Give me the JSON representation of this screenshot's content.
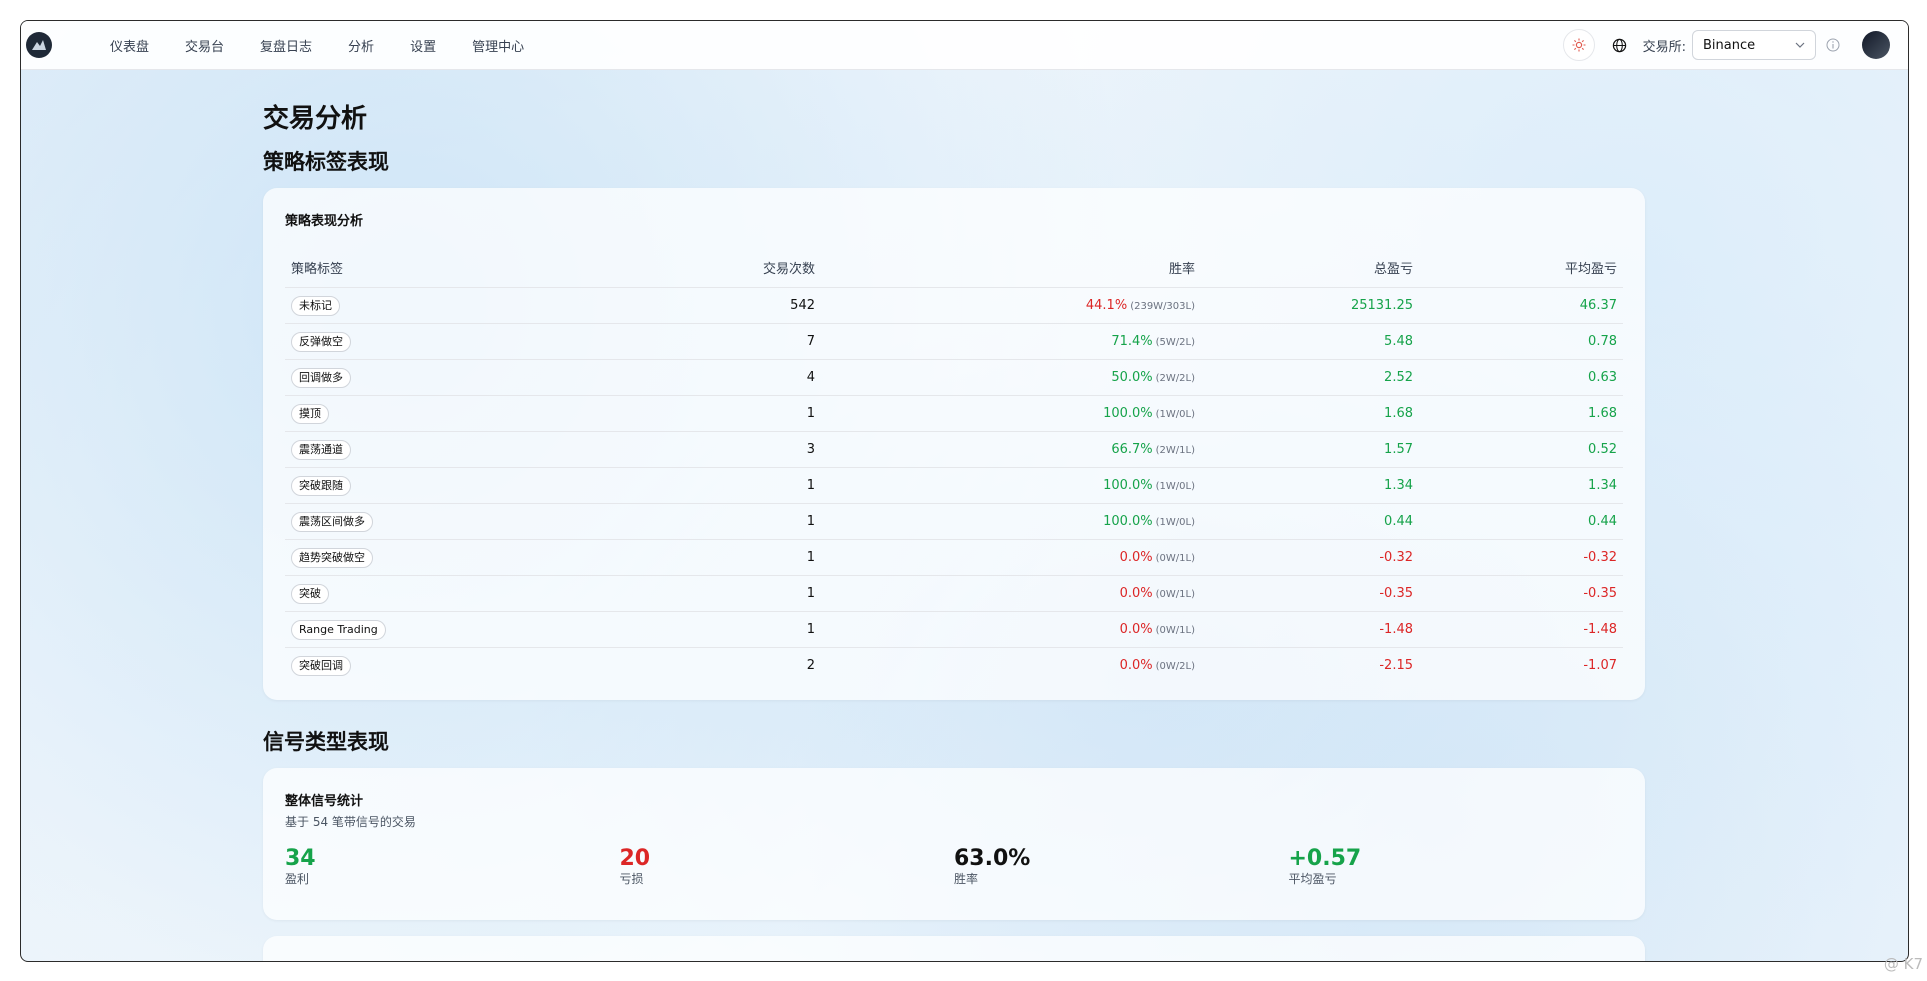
{
  "nav": {
    "items": [
      "仪表盘",
      "交易台",
      "复盘日志",
      "分析",
      "设置",
      "管理中心"
    ],
    "exchange_label": "交易所:",
    "exchange_value": "Binance"
  },
  "page": {
    "title": "交易分析",
    "strategy_section_title": "策略标签表现",
    "signal_section_title": "信号类型表现"
  },
  "strategy_card": {
    "title": "策略表现分析",
    "columns": [
      "策略标签",
      "交易次数",
      "胜率",
      "总盈亏",
      "平均盈亏"
    ],
    "rows": [
      {
        "tag": "未标记",
        "count": "542",
        "winrate": "44.1%",
        "wl": "(239W/303L)",
        "total": "25131.25",
        "avg": "46.37",
        "winrate_neg": true,
        "pnl_neg": false
      },
      {
        "tag": "反弹做空",
        "count": "7",
        "winrate": "71.4%",
        "wl": "(5W/2L)",
        "total": "5.48",
        "avg": "0.78",
        "winrate_neg": false,
        "pnl_neg": false
      },
      {
        "tag": "回调做多",
        "count": "4",
        "winrate": "50.0%",
        "wl": "(2W/2L)",
        "total": "2.52",
        "avg": "0.63",
        "winrate_neg": false,
        "pnl_neg": false
      },
      {
        "tag": "摸顶",
        "count": "1",
        "winrate": "100.0%",
        "wl": "(1W/0L)",
        "total": "1.68",
        "avg": "1.68",
        "winrate_neg": false,
        "pnl_neg": false
      },
      {
        "tag": "震荡通道",
        "count": "3",
        "winrate": "66.7%",
        "wl": "(2W/1L)",
        "total": "1.57",
        "avg": "0.52",
        "winrate_neg": false,
        "pnl_neg": false
      },
      {
        "tag": "突破跟随",
        "count": "1",
        "winrate": "100.0%",
        "wl": "(1W/0L)",
        "total": "1.34",
        "avg": "1.34",
        "winrate_neg": false,
        "pnl_neg": false
      },
      {
        "tag": "震荡区间做多",
        "count": "1",
        "winrate": "100.0%",
        "wl": "(1W/0L)",
        "total": "0.44",
        "avg": "0.44",
        "winrate_neg": false,
        "pnl_neg": false
      },
      {
        "tag": "趋势突破做空",
        "count": "1",
        "winrate": "0.0%",
        "wl": "(0W/1L)",
        "total": "-0.32",
        "avg": "-0.32",
        "winrate_neg": true,
        "pnl_neg": true
      },
      {
        "tag": "突破",
        "count": "1",
        "winrate": "0.0%",
        "wl": "(0W/1L)",
        "total": "-0.35",
        "avg": "-0.35",
        "winrate_neg": true,
        "pnl_neg": true
      },
      {
        "tag": "Range Trading",
        "count": "1",
        "winrate": "0.0%",
        "wl": "(0W/1L)",
        "total": "-1.48",
        "avg": "-1.48",
        "winrate_neg": true,
        "pnl_neg": true
      },
      {
        "tag": "突破回调",
        "count": "2",
        "winrate": "0.0%",
        "wl": "(0W/2L)",
        "total": "-2.15",
        "avg": "-1.07",
        "winrate_neg": true,
        "pnl_neg": true
      }
    ]
  },
  "signal_card": {
    "title": "整体信号统计",
    "subtitle": "基于 54 笔带信号的交易",
    "stats": [
      {
        "value": "34",
        "label": "盈利",
        "tone": "pos"
      },
      {
        "value": "20",
        "label": "亏损",
        "tone": "neg"
      },
      {
        "value": "63.0%",
        "label": "胜率",
        "tone": "neutral"
      },
      {
        "value": "+0.57",
        "label": "平均盈亏",
        "tone": "pos"
      }
    ]
  },
  "watermark": "@ K7",
  "colors": {
    "positive": "#16a34a",
    "negative": "#dc2626"
  }
}
